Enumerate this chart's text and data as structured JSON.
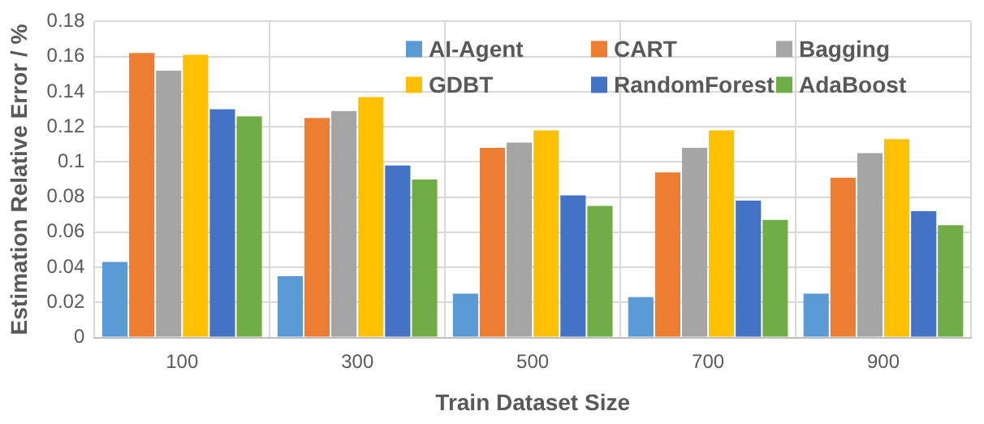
{
  "chart_data": {
    "type": "bar",
    "xlabel": "Train Dataset Size",
    "ylabel": "Estimation Relative Error / %",
    "categories": [
      "100",
      "300",
      "500",
      "700",
      "900"
    ],
    "series": [
      {
        "name": "AI-Agent",
        "color": "#5b9bd5",
        "values": [
          0.043,
          0.035,
          0.025,
          0.023,
          0.025
        ]
      },
      {
        "name": "CART",
        "color": "#ed7d31",
        "values": [
          0.162,
          0.125,
          0.108,
          0.094,
          0.091
        ]
      },
      {
        "name": "Bagging",
        "color": "#a5a5a5",
        "values": [
          0.152,
          0.129,
          0.111,
          0.108,
          0.105
        ]
      },
      {
        "name": "GDBT",
        "color": "#ffc000",
        "values": [
          0.161,
          0.137,
          0.118,
          0.118,
          0.113
        ]
      },
      {
        "name": "RandomForest",
        "color": "#4472c4",
        "values": [
          0.13,
          0.098,
          0.081,
          0.078,
          0.072
        ]
      },
      {
        "name": "AdaBoost",
        "color": "#70ad47",
        "values": [
          0.126,
          0.09,
          0.075,
          0.067,
          0.064
        ]
      }
    ],
    "ylim": [
      0,
      0.18
    ],
    "yticks": [
      0,
      0.02,
      0.04,
      0.06,
      0.08,
      0.1,
      0.12,
      0.14,
      0.16,
      0.18
    ],
    "grid": true,
    "legend": "top right"
  }
}
